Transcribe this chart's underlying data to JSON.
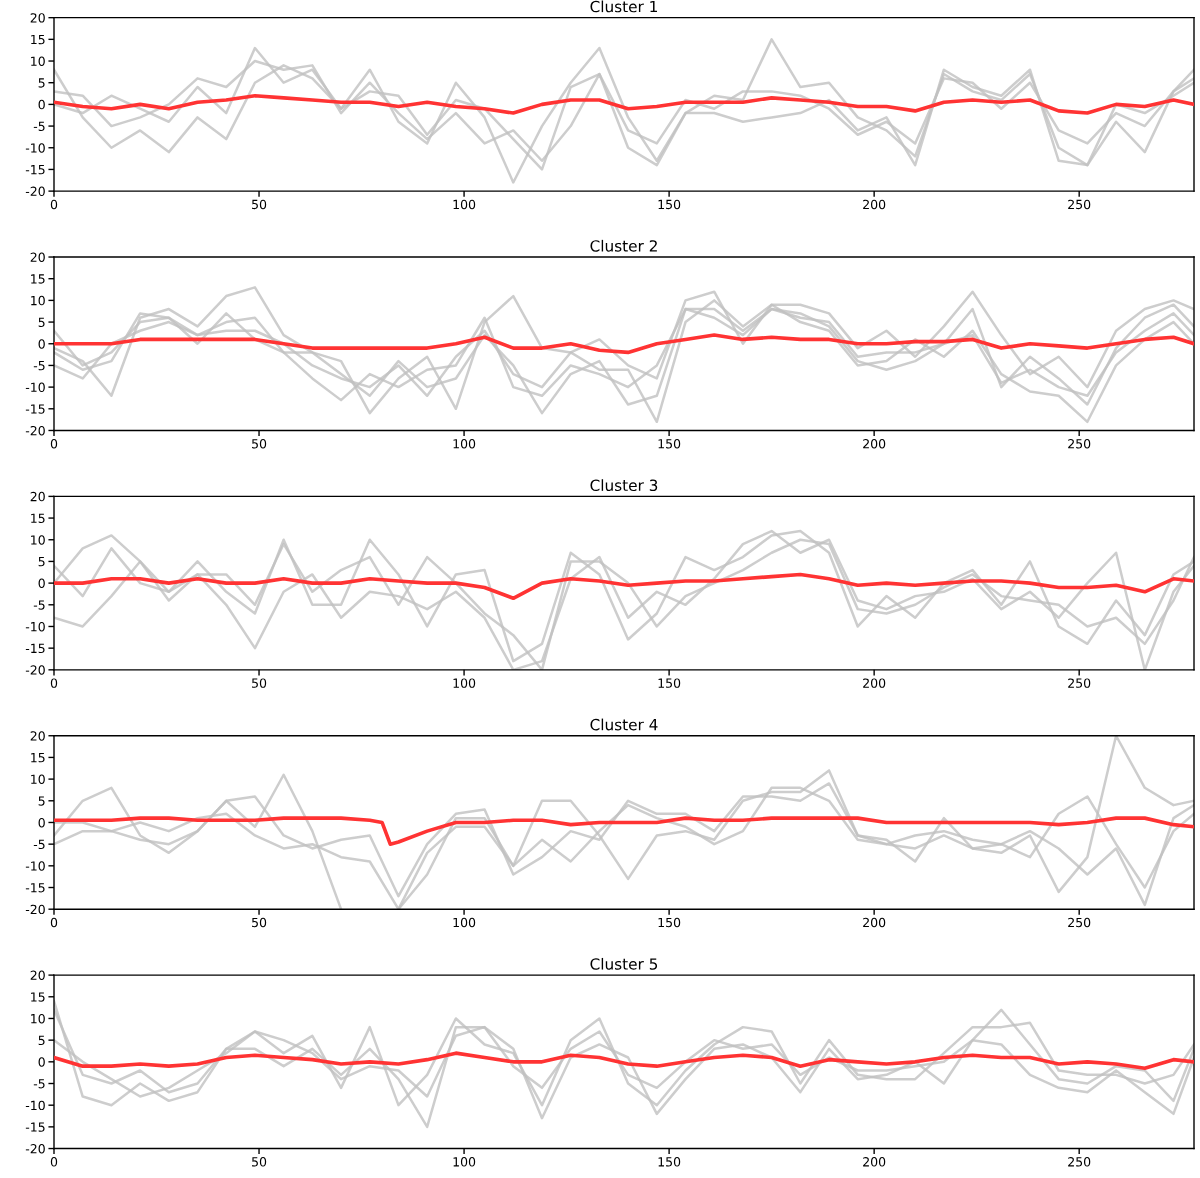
{
  "chart_data": [
    {
      "type": "line",
      "title": "Cluster 1",
      "x": [
        0,
        7,
        14,
        21,
        28,
        35,
        42,
        49,
        56,
        63,
        70,
        77,
        84,
        91,
        98,
        105,
        112,
        119,
        126,
        133,
        140,
        147,
        154,
        161,
        168,
        175,
        182,
        189,
        196,
        203,
        210,
        217,
        224,
        231,
        238,
        245,
        252,
        259,
        266,
        273,
        278
      ],
      "xlim": [
        0,
        278
      ],
      "ylim": [
        -20,
        20
      ],
      "xticks": [
        0,
        50,
        100,
        150,
        200,
        250
      ],
      "yticks": [
        -20,
        -15,
        -10,
        -5,
        0,
        5,
        10,
        15,
        20
      ],
      "series": [
        {
          "color": "#c0c0c0",
          "values": [
            8,
            -3,
            -10,
            -6,
            -11,
            -3,
            -8,
            5,
            9,
            6,
            -1,
            8,
            -4,
            -9,
            5,
            -3,
            -18,
            -5,
            5,
            13,
            -3,
            -13,
            -2,
            2,
            1,
            15,
            4,
            5,
            -3,
            -6,
            -12,
            7,
            3,
            1,
            7,
            -10,
            -14,
            -4,
            -11,
            3,
            8
          ]
        },
        {
          "color": "#c0c0c0",
          "values": [
            3,
            2,
            -5,
            -3,
            0,
            6,
            4,
            10,
            8,
            9,
            -2,
            5,
            -2,
            -8,
            -2,
            -9,
            -6,
            -13,
            -5,
            7,
            -10,
            -14,
            -2,
            -2,
            -4,
            -3,
            -2,
            1,
            -6,
            -3,
            -14,
            8,
            4,
            2,
            8,
            -13,
            -14,
            0,
            -2,
            2,
            5
          ]
        },
        {
          "color": "#c0c0c0",
          "values": [
            0,
            -2,
            2,
            -1,
            -4,
            4,
            -2,
            13,
            5,
            8,
            -1,
            3,
            2,
            -7,
            1,
            -1,
            -8,
            -15,
            4,
            7,
            -6,
            -9,
            1,
            -1,
            3,
            3,
            2,
            -1,
            -7,
            -4,
            -9,
            6,
            5,
            -1,
            5,
            -6,
            -9,
            -2,
            -5,
            3,
            6
          ]
        },
        {
          "color": "#ff3333",
          "values": [
            0.5,
            -0.5,
            -1,
            0,
            -1,
            0.5,
            1,
            2,
            1.5,
            1,
            0.5,
            0.5,
            -0.5,
            0.5,
            -0.5,
            -1,
            -2,
            0,
            1,
            1,
            -1,
            -0.5,
            0.5,
            0.5,
            0.5,
            1.5,
            1,
            0.5,
            -0.5,
            -0.5,
            -1.5,
            0.5,
            1,
            0.5,
            1,
            -1.5,
            -2,
            0,
            -0.5,
            1,
            0
          ]
        }
      ]
    },
    {
      "type": "line",
      "title": "Cluster 2",
      "x": [
        0,
        7,
        14,
        21,
        28,
        35,
        42,
        49,
        56,
        63,
        70,
        77,
        84,
        91,
        98,
        105,
        112,
        119,
        126,
        133,
        140,
        147,
        154,
        161,
        168,
        175,
        182,
        189,
        196,
        203,
        210,
        217,
        224,
        231,
        238,
        245,
        252,
        259,
        266,
        273,
        278
      ],
      "xlim": [
        0,
        278
      ],
      "ylim": [
        -20,
        20
      ],
      "xticks": [
        0,
        50,
        100,
        150,
        200,
        250
      ],
      "yticks": [
        -20,
        -15,
        -10,
        -5,
        0,
        5,
        10,
        15,
        20
      ],
      "series": [
        {
          "color": "#c0c0c0",
          "values": [
            3,
            -5,
            -2,
            5,
            6,
            0,
            7,
            1,
            -2,
            -8,
            -13,
            -7,
            -10,
            -6,
            -5,
            6,
            -10,
            -12,
            -5,
            -7,
            -10,
            -5,
            8,
            8,
            3,
            8,
            6,
            5,
            -3,
            -2,
            -2,
            0,
            2,
            -9,
            -6,
            -10,
            -12,
            -2,
            3,
            7,
            2
          ]
        },
        {
          "color": "#c0c0c0",
          "values": [
            -5,
            -8,
            0,
            3,
            5,
            2,
            3,
            3,
            0,
            -5,
            -8,
            -10,
            -5,
            -12,
            -3,
            3,
            -7,
            -10,
            -2,
            -6,
            -6,
            -18,
            5,
            10,
            4,
            9,
            5,
            3,
            -5,
            -4,
            1,
            -3,
            3,
            -7,
            -11,
            -12,
            -18,
            -5,
            1,
            5,
            0
          ]
        },
        {
          "color": "#c0c0c0",
          "values": [
            -1,
            -4,
            -12,
            6,
            8,
            4,
            11,
            13,
            2,
            -2,
            -4,
            -16,
            -8,
            -3,
            -15,
            5,
            11,
            -1,
            -2,
            1,
            -5,
            -8,
            10,
            12,
            0,
            9,
            9,
            7,
            -1,
            3,
            -3,
            4,
            12,
            2,
            -7,
            -3,
            -10,
            3,
            8,
            10,
            8
          ]
        },
        {
          "color": "#c0c0c0",
          "values": [
            -2,
            -6,
            -4,
            7,
            6,
            2,
            5,
            6,
            -2,
            -2,
            -7,
            -12,
            -4,
            -10,
            -8,
            2,
            -5,
            -16,
            -7,
            -4,
            -14,
            -12,
            8,
            6,
            2,
            8,
            7,
            4,
            -4,
            -6,
            -4,
            0,
            8,
            -10,
            -3,
            -8,
            -14,
            -1,
            6,
            9,
            4
          ]
        },
        {
          "color": "#ff3333",
          "values": [
            0,
            0,
            0,
            1,
            1,
            1,
            1,
            1,
            0,
            -1,
            -1,
            -1,
            -1,
            -1,
            0,
            1.5,
            -1,
            -1,
            0,
            -1.5,
            -2,
            0,
            1,
            2,
            1,
            1.5,
            1,
            1,
            0,
            0,
            0.5,
            0.5,
            1,
            -1,
            0,
            -0.5,
            -1,
            0,
            1,
            1.5,
            0
          ]
        }
      ]
    },
    {
      "type": "line",
      "title": "Cluster 3",
      "x": [
        0,
        7,
        14,
        21,
        28,
        35,
        42,
        49,
        56,
        63,
        70,
        77,
        84,
        91,
        98,
        105,
        112,
        119,
        126,
        133,
        140,
        147,
        154,
        161,
        168,
        175,
        182,
        189,
        196,
        203,
        210,
        217,
        224,
        231,
        238,
        245,
        252,
        259,
        266,
        273,
        278
      ],
      "xlim": [
        0,
        278
      ],
      "ylim": [
        -20,
        20
      ],
      "xticks": [
        0,
        50,
        100,
        150,
        200,
        250
      ],
      "yticks": [
        -20,
        -15,
        -10,
        -5,
        0,
        5,
        10,
        15,
        20
      ],
      "series": [
        {
          "color": "#c0c0c0",
          "values": [
            -8,
            -10,
            -3,
            5,
            -2,
            2,
            2,
            -5,
            9,
            -2,
            3,
            6,
            -5,
            6,
            0,
            -7,
            -12,
            -20,
            5,
            5,
            0,
            -10,
            -3,
            0,
            3,
            7,
            10,
            9,
            -6,
            -7,
            -5,
            -1,
            2,
            -3,
            -4,
            -5,
            -10,
            -8,
            -14,
            -4,
            6
          ]
        },
        {
          "color": "#c0c0c0",
          "values": [
            4,
            -3,
            8,
            0,
            -2,
            5,
            -2,
            -7,
            10,
            -5,
            -5,
            10,
            2,
            -10,
            2,
            3,
            -18,
            -14,
            7,
            2,
            -13,
            -7,
            6,
            3,
            6,
            11,
            12,
            7,
            -10,
            -3,
            -8,
            0,
            3,
            -5,
            5,
            -10,
            -14,
            -4,
            -12,
            2,
            5
          ]
        },
        {
          "color": "#c0c0c0",
          "values": [
            0,
            8,
            11,
            5,
            -4,
            2,
            -5,
            -15,
            -2,
            2,
            -8,
            -2,
            -3,
            -6,
            -2,
            -8,
            -20,
            -18,
            1,
            6,
            -8,
            -2,
            -5,
            1,
            9,
            12,
            7,
            10,
            -4,
            -6,
            -3,
            -2,
            1,
            -6,
            -2,
            -8,
            0,
            7,
            -20,
            -2,
            4
          ]
        },
        {
          "color": "#ff3333",
          "values": [
            0,
            0,
            1,
            1,
            0,
            1,
            0,
            0,
            1,
            0,
            0,
            1,
            0.5,
            0,
            0,
            -1,
            -3.5,
            0,
            1,
            0.5,
            -0.5,
            0,
            0.5,
            0.5,
            1,
            1.5,
            2,
            1,
            -0.5,
            0,
            -0.5,
            0,
            0.5,
            0.5,
            0,
            -1,
            -1,
            -0.5,
            -2,
            1,
            0.5
          ]
        }
      ]
    },
    {
      "type": "line",
      "title": "Cluster 4",
      "x": [
        0,
        7,
        14,
        21,
        28,
        35,
        42,
        49,
        56,
        63,
        70,
        77,
        84,
        91,
        98,
        105,
        112,
        119,
        126,
        133,
        140,
        147,
        154,
        161,
        168,
        175,
        182,
        189,
        196,
        203,
        210,
        217,
        224,
        231,
        238,
        245,
        252,
        259,
        266,
        273,
        278
      ],
      "xlim": [
        0,
        278
      ],
      "ylim": [
        -20,
        20
      ],
      "xticks": [
        0,
        50,
        100,
        150,
        200,
        250
      ],
      "yticks": [
        -20,
        -15,
        -10,
        -5,
        0,
        5,
        10,
        15,
        20
      ],
      "series": [
        {
          "color": "#c0c0c0",
          "values": [
            -3,
            5,
            8,
            -3,
            -7,
            -2,
            5,
            -1,
            11,
            -2,
            -20,
            null,
            -20,
            -12,
            1,
            1,
            -10,
            5,
            5,
            -3,
            -13,
            -3,
            -2,
            -4,
            5,
            7,
            7,
            12,
            -3,
            -5,
            -6,
            -3,
            -6,
            -7,
            -3,
            -16,
            -8,
            20,
            8,
            4,
            5
          ]
        },
        {
          "color": "#c0c0c0",
          "values": [
            0,
            0,
            -2,
            -4,
            -5,
            -2,
            5,
            6,
            -3,
            -6,
            -4,
            -3,
            -17,
            -5,
            2,
            3,
            -12,
            -8,
            -2,
            -4,
            5,
            2,
            2,
            -2,
            6,
            6,
            5,
            9,
            -3,
            -4,
            -9,
            1,
            -6,
            -5,
            -8,
            2,
            6,
            -5,
            -15,
            -2,
            2
          ]
        },
        {
          "color": "#c0c0c0",
          "values": [
            -5,
            -2,
            -2,
            0,
            -2,
            1,
            2,
            -3,
            -6,
            -5,
            -8,
            -9,
            -20,
            -7,
            -1,
            -1,
            -10,
            -4,
            -9,
            -2,
            4,
            1,
            -1,
            -5,
            -2,
            8,
            8,
            5,
            -4,
            -5,
            -3,
            -2,
            -4,
            -5,
            -2,
            -6,
            -12,
            -6,
            -19,
            1,
            4
          ]
        },
        {
          "color": "#ff3333",
          "x": [
            0,
            7,
            14,
            21,
            28,
            35,
            42,
            49,
            56,
            63,
            70,
            77,
            80,
            82,
            84,
            91,
            98,
            105,
            112,
            119,
            126,
            133,
            140,
            147,
            154,
            161,
            168,
            175,
            182,
            189,
            196,
            203,
            210,
            217,
            224,
            231,
            238,
            245,
            252,
            259,
            266,
            273,
            278
          ],
          "values": [
            0.5,
            0.5,
            0.5,
            1,
            1,
            0.5,
            0.5,
            0.5,
            1,
            1,
            1,
            0.5,
            0,
            -5,
            -4.5,
            -2,
            0,
            0,
            0.5,
            0.5,
            -0.5,
            0,
            0,
            0,
            1,
            0.5,
            0.5,
            1,
            1,
            1,
            1,
            0,
            0,
            0,
            0,
            0,
            0,
            -0.5,
            0,
            1,
            1,
            -0.5,
            -1
          ]
        }
      ]
    },
    {
      "type": "line",
      "title": "Cluster 5",
      "x": [
        0,
        7,
        14,
        21,
        28,
        35,
        42,
        49,
        56,
        63,
        70,
        77,
        84,
        91,
        98,
        105,
        112,
        119,
        126,
        133,
        140,
        147,
        154,
        161,
        168,
        175,
        182,
        189,
        196,
        203,
        210,
        217,
        224,
        231,
        238,
        245,
        252,
        259,
        266,
        273,
        278
      ],
      "xlim": [
        0,
        278
      ],
      "ylim": [
        -20,
        20
      ],
      "xticks": [
        0,
        50,
        100,
        150,
        200,
        250
      ],
      "yticks": [
        -20,
        -15,
        -10,
        -5,
        0,
        5,
        10,
        15,
        20
      ],
      "series": [
        {
          "color": "#c0c0c0",
          "values": [
            14,
            -8,
            -10,
            -5,
            -9,
            -7,
            3,
            7,
            2,
            6,
            -6,
            8,
            -10,
            -3,
            10,
            4,
            2,
            -10,
            5,
            10,
            -5,
            -10,
            -2,
            4,
            8,
            7,
            -5,
            5,
            -3,
            -4,
            -4,
            2,
            8,
            8,
            9,
            -2,
            -3,
            -3,
            -5,
            -3,
            4
          ]
        },
        {
          "color": "#c0c0c0",
          "values": [
            12,
            -3,
            -5,
            -2,
            -7,
            -5,
            3,
            3,
            -1,
            3,
            -3,
            3,
            -4,
            -15,
            8,
            8,
            3,
            -13,
            1,
            4,
            1,
            -12,
            -4,
            3,
            4,
            1,
            -7,
            3,
            -4,
            -3,
            0,
            -5,
            5,
            4,
            -3,
            -6,
            -7,
            -2,
            -7,
            -12,
            1
          ]
        },
        {
          "color": "#c0c0c0",
          "values": [
            5,
            0,
            -4,
            -8,
            -6,
            -2,
            2,
            7,
            5,
            2,
            -4,
            -1,
            -2,
            -8,
            6,
            8,
            -1,
            -6,
            3,
            7,
            -3,
            -6,
            0,
            5,
            3,
            4,
            -3,
            1,
            -2,
            -2,
            -1,
            0,
            5,
            12,
            4,
            -4,
            -5,
            -1,
            -2,
            -9,
            3
          ]
        },
        {
          "color": "#ff3333",
          "values": [
            1,
            -1,
            -1,
            -0.5,
            -1,
            -0.5,
            1,
            1.5,
            1,
            0.5,
            -0.5,
            0,
            -0.5,
            0.5,
            2,
            1,
            0,
            0,
            1.5,
            1,
            -0.5,
            -1,
            0,
            1,
            1.5,
            1,
            -1,
            0.5,
            0,
            -0.5,
            0,
            1,
            1.5,
            1,
            1,
            -0.5,
            0,
            -0.5,
            -1.5,
            0.5,
            0
          ]
        }
      ]
    }
  ]
}
